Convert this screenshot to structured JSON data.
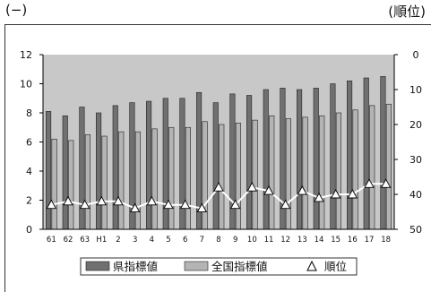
{
  "header": {
    "left_unit": "(−)",
    "right_unit": "(順位)"
  },
  "colors": {
    "plot_background": "#c8c8c8",
    "prefecture_bar": "#707070",
    "national_bar": "#b4b4b4",
    "rank_line": "#ffffff",
    "rank_marker_fill": "#ffffff",
    "rank_marker_stroke": "#000000"
  },
  "chart_data": {
    "type": "bar",
    "categories": [
      "61",
      "62",
      "63",
      "H1",
      "2",
      "3",
      "4",
      "5",
      "6",
      "7",
      "8",
      "9",
      "10",
      "11",
      "12",
      "13",
      "14",
      "15",
      "16",
      "17",
      "18"
    ],
    "series": [
      {
        "name": "県指標値",
        "kind": "bar",
        "axis": "left",
        "values": [
          8.1,
          7.8,
          8.4,
          8.0,
          8.5,
          8.7,
          8.8,
          9.0,
          9.0,
          9.4,
          8.7,
          9.3,
          9.2,
          9.6,
          9.7,
          9.6,
          9.7,
          10.0,
          10.2,
          10.4,
          10.5
        ]
      },
      {
        "name": "全国指標値",
        "kind": "bar",
        "axis": "left",
        "values": [
          6.2,
          6.1,
          6.5,
          6.4,
          6.7,
          6.7,
          6.9,
          7.0,
          7.0,
          7.4,
          7.2,
          7.3,
          7.5,
          7.8,
          7.6,
          7.7,
          7.8,
          8.0,
          8.2,
          8.5,
          8.6
        ]
      },
      {
        "name": "順位",
        "kind": "line",
        "axis": "right",
        "values": [
          43,
          42,
          43,
          42,
          42,
          44,
          42,
          43,
          43,
          44,
          38,
          43,
          38,
          39,
          43,
          39,
          41,
          40,
          40,
          37,
          37
        ]
      }
    ],
    "y_left": {
      "min": 0,
      "max": 12,
      "ticks": [
        0,
        2,
        4,
        6,
        8,
        10,
        12
      ]
    },
    "y_right": {
      "min": 0,
      "max": 50,
      "inverted": true,
      "ticks": [
        0,
        10,
        20,
        30,
        40,
        50
      ]
    },
    "grid": false,
    "legend": {
      "position": "bottom",
      "items": [
        {
          "label": "県指標値",
          "symbol": "bar-dark"
        },
        {
          "label": "全国指標値",
          "symbol": "bar-light"
        },
        {
          "label": "順位",
          "symbol": "triangle"
        }
      ]
    }
  }
}
